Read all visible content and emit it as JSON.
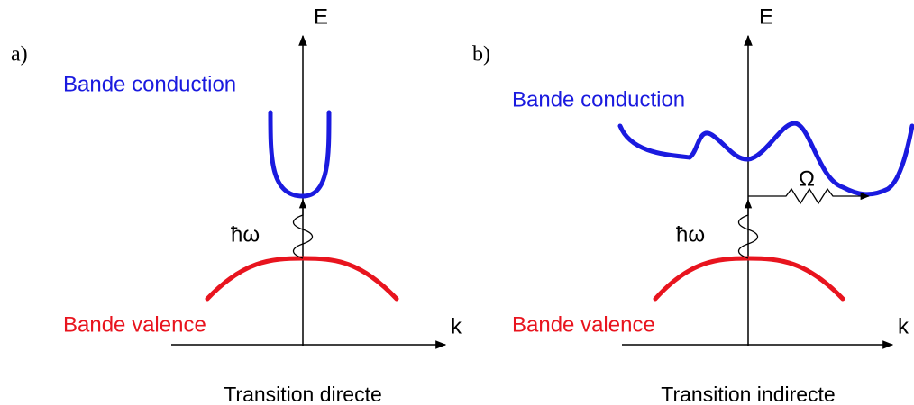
{
  "panels": [
    {
      "label": "a)",
      "axis_y": "E",
      "axis_x": "k",
      "conduction": "Bande conduction",
      "valence": "Bande valence",
      "photon": "ħω",
      "caption": "Transition directe"
    },
    {
      "label": "b)",
      "axis_y": "E",
      "axis_x": "k",
      "conduction": "Bande conduction",
      "valence": "Bande valence",
      "photon": "ħω",
      "phonon": "Ω",
      "caption": "Transition indirecte"
    }
  ]
}
